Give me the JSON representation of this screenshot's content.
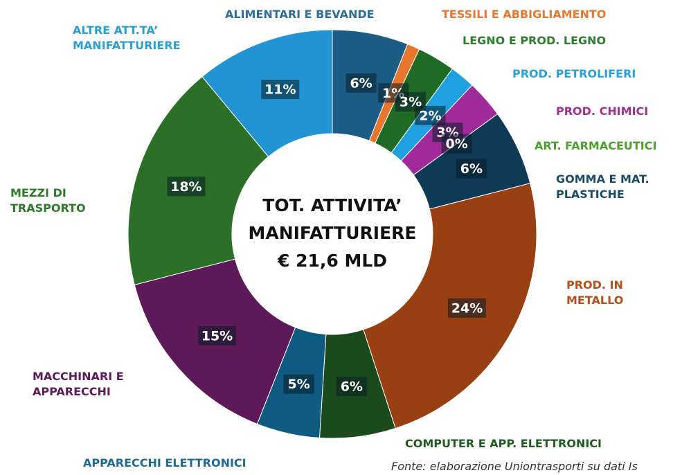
{
  "chart_data": {
    "type": "donut",
    "categories": [
      "ALIMENTARI E BEVANDE",
      "TESSILI E ABBIGLIAMENTO",
      "LEGNO E PROD. LEGNO",
      "PROD. PETROLIFERI",
      "PROD. CHIMICI",
      "ART. FARMACEUTICI",
      "GOMMA E MAT. PLASTICHE",
      "PROD. IN METALLO",
      "COMPUTER E APP. ELETTRONICI",
      "APPARECCHI ELETTRONICI",
      "MACCHINARI E APPARECCHI",
      "MEZZI DI TRASPORTO",
      "ALTRE ATT.TA’ MANIFATTURIERE"
    ],
    "values": [
      6,
      1,
      3,
      2,
      3,
      0,
      6,
      24,
      6,
      5,
      15,
      18,
      11
    ],
    "value_labels": [
      "6%",
      "1%",
      "3%",
      "2%",
      "3%",
      "0%",
      "6%",
      "24%",
      "6%",
      "5%",
      "15%",
      "18%",
      "11%"
    ],
    "colors": [
      "#1d5d85",
      "#e8772e",
      "#1f6b25",
      "#1fa0e0",
      "#a02a9a",
      "#5cb030",
      "#0e3a55",
      "#994012",
      "#1b4a1c",
      "#0f5a80",
      "#5e1a58",
      "#2c6f26",
      "#2294d4"
    ],
    "label_colors": [
      "#2b6e99",
      "#e8772e",
      "#2e7d2e",
      "#2a9fd6",
      "#a03090",
      "#4aa02a",
      "#1d4a66",
      "#b5501b",
      "#1f5a22",
      "#1e6a94",
      "#5e1a5a",
      "#2e7a2a",
      "#2a9fd6"
    ],
    "center_text": [
      "TOT. ATTIVITA’",
      "MANIFATTURIERE",
      "€ 21,6 MLD"
    ],
    "source": "Fonte: elaborazione Uniontrasporti su dati Is"
  }
}
